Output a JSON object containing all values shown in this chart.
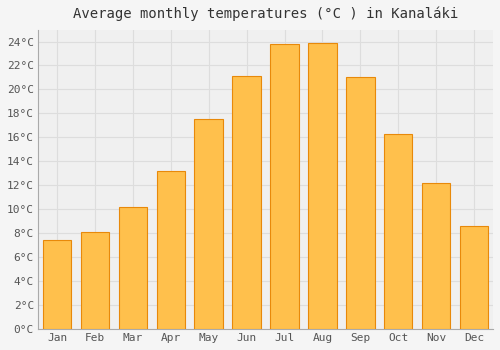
{
  "title": "Average monthly temperatures (°C ) in Kanaláki",
  "months": [
    "Jan",
    "Feb",
    "Mar",
    "Apr",
    "May",
    "Jun",
    "Jul",
    "Aug",
    "Sep",
    "Oct",
    "Nov",
    "Dec"
  ],
  "values": [
    7.4,
    8.1,
    10.2,
    13.2,
    17.5,
    21.1,
    23.8,
    23.9,
    21.0,
    16.3,
    12.2,
    8.6
  ],
  "bar_color_main": "#FFC04C",
  "bar_color_edge": "#E8890A",
  "ylim": [
    0,
    25
  ],
  "yticks": [
    0,
    2,
    4,
    6,
    8,
    10,
    12,
    14,
    16,
    18,
    20,
    22,
    24
  ],
  "background_color": "#F5F5F5",
  "plot_bg_color": "#F0F0F0",
  "grid_color": "#DDDDDD",
  "title_fontsize": 10,
  "tick_fontsize": 8,
  "font_family": "monospace",
  "figsize": [
    5.0,
    3.5
  ],
  "dpi": 100
}
